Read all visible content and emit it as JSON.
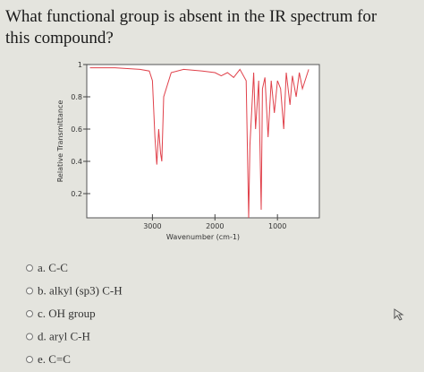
{
  "question_lines": [
    "What functional group is absent in the IR spectrum for",
    "this compound?"
  ],
  "chart_data": {
    "type": "line",
    "x_label": "Wavenumber (cm-1)",
    "y_label": "Relative Transmittance",
    "x": [
      4000,
      3600,
      3200,
      3050,
      3000,
      2960,
      2930,
      2900,
      2870,
      2850,
      2820,
      2700,
      2500,
      2200,
      2000,
      1900,
      1800,
      1700,
      1600,
      1500,
      1460,
      1440,
      1380,
      1350,
      1300,
      1260,
      1240,
      1200,
      1150,
      1100,
      1050,
      1000,
      950,
      900,
      860,
      800,
      760,
      700,
      650,
      600,
      500
    ],
    "values": [
      0.98,
      0.98,
      0.97,
      0.96,
      0.9,
      0.55,
      0.38,
      0.6,
      0.45,
      0.4,
      0.8,
      0.95,
      0.97,
      0.96,
      0.95,
      0.93,
      0.95,
      0.92,
      0.97,
      0.9,
      0.05,
      0.5,
      0.95,
      0.6,
      0.9,
      0.1,
      0.85,
      0.92,
      0.55,
      0.9,
      0.7,
      0.9,
      0.85,
      0.6,
      0.95,
      0.75,
      0.93,
      0.8,
      0.95,
      0.85,
      0.97
    ],
    "color": "#e0404a",
    "xlim": [
      4050,
      330
    ],
    "ylim": [
      0.05,
      1.0
    ],
    "xticks": [
      3000,
      2000,
      1000
    ],
    "yticks": [
      0.2,
      0.4,
      0.6,
      0.8,
      1
    ]
  },
  "options": [
    "a. C-C",
    "b. alkyl (sp3) C-H",
    "c. OH group",
    "d. aryl C-H",
    "e. C=C"
  ]
}
